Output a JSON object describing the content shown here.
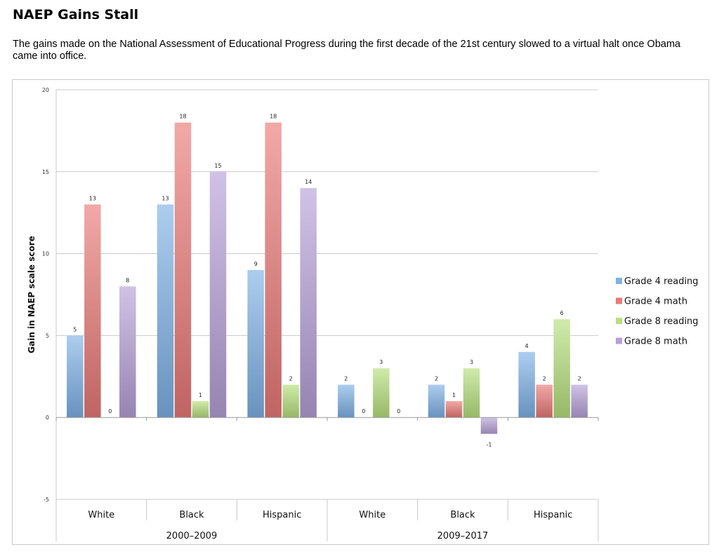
{
  "header": {
    "title": "NAEP Gains Stall",
    "subtitle": "The gains made on the National Assessment of Educational Progress during the first decade of the 21st century slowed to a virtual halt once Obama came into office."
  },
  "chart_data": {
    "type": "bar",
    "title": "",
    "xlabel": "",
    "ylabel": "Gain in NAEP scale score",
    "ylim": [
      -5,
      20
    ],
    "yticks": [
      -5,
      0,
      5,
      10,
      15,
      20
    ],
    "grid": true,
    "legend_position": "right",
    "groups": [
      {
        "label": "2000–2009",
        "categories": [
          "White",
          "Black",
          "Hispanic"
        ]
      },
      {
        "label": "2009–2017",
        "categories": [
          "White",
          "Black",
          "Hispanic"
        ]
      }
    ],
    "categories": [
      "White",
      "Black",
      "Hispanic",
      "White",
      "Black",
      "Hispanic"
    ],
    "series": [
      {
        "name": "Grade 4 reading",
        "color": "#7fb2e6",
        "values": [
          5,
          13,
          9,
          2,
          2,
          4
        ]
      },
      {
        "name": "Grade 4 math",
        "color": "#e97a78",
        "values": [
          13,
          18,
          18,
          0,
          1,
          2
        ]
      },
      {
        "name": "Grade 8 reading",
        "color": "#b7e07d",
        "values": [
          0,
          1,
          2,
          3,
          3,
          6
        ]
      },
      {
        "name": "Grade 8 math",
        "color": "#b7a1d8",
        "values": [
          8,
          15,
          14,
          0,
          -1,
          2
        ]
      }
    ]
  }
}
